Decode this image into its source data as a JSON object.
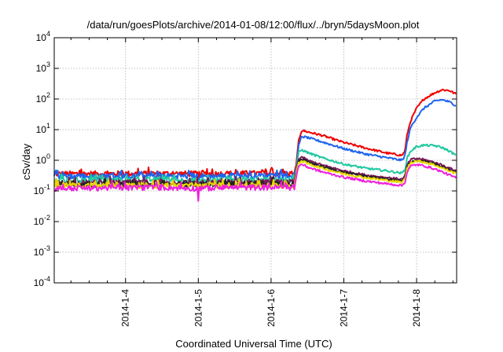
{
  "chart_data": {
    "type": "line",
    "title": "/data/run/goesPlots/archive/2014-01-08/12:00/flux/../bryn/5daysMoon.plot",
    "xlabel": "Coordinated Universal Time (UTC)",
    "ylabel": "cSv/day",
    "y_scale": "log",
    "ylim": [
      0.0001,
      10000
    ],
    "xlim": [
      -0.98,
      4.55
    ],
    "x_unit": "days from 2014-01-04 00:00 UTC",
    "x_ticks": [
      {
        "x": 0,
        "label": "2014-1-4"
      },
      {
        "x": 1,
        "label": "2014-1-5"
      },
      {
        "x": 2,
        "label": "2014-1-6"
      },
      {
        "x": 3,
        "label": "2014-1-7"
      },
      {
        "x": 4,
        "label": "2014-1-8"
      }
    ],
    "y_ticks": [
      {
        "value": 0.0001,
        "base": "10",
        "exp": "-4"
      },
      {
        "value": 0.001,
        "base": "10",
        "exp": "-3"
      },
      {
        "value": 0.01,
        "base": "10",
        "exp": "-2"
      },
      {
        "value": 0.1,
        "base": "10",
        "exp": "-1"
      },
      {
        "value": 1,
        "base": "10",
        "exp": "0"
      },
      {
        "value": 10,
        "base": "10",
        "exp": "1"
      },
      {
        "value": 100,
        "base": "10",
        "exp": "2"
      },
      {
        "value": 1000,
        "base": "10",
        "exp": "3"
      },
      {
        "value": 10000,
        "base": "10",
        "exp": "4"
      }
    ],
    "grid": true,
    "legend": "none",
    "series": [
      {
        "color": "#ee0000",
        "points": [
          [
            -0.98,
            0.36
          ],
          [
            0.5,
            0.37
          ],
          [
            1.0,
            0.36
          ],
          [
            1.5,
            0.37
          ],
          [
            2.0,
            0.38
          ],
          [
            2.32,
            0.37
          ],
          [
            2.35,
            0.9
          ],
          [
            2.38,
            4.5
          ],
          [
            2.42,
            9.5
          ],
          [
            2.5,
            8.5
          ],
          [
            2.7,
            6.5
          ],
          [
            3.0,
            3.8
          ],
          [
            3.3,
            2.5
          ],
          [
            3.6,
            1.7
          ],
          [
            3.8,
            1.45
          ],
          [
            3.84,
            2.0
          ],
          [
            3.87,
            7
          ],
          [
            3.92,
            20
          ],
          [
            4.0,
            50
          ],
          [
            4.1,
            100
          ],
          [
            4.25,
            160
          ],
          [
            4.35,
            200
          ],
          [
            4.45,
            190
          ],
          [
            4.55,
            140
          ]
        ]
      },
      {
        "color": "#1e64ee",
        "points": [
          [
            -0.98,
            0.3
          ],
          [
            0.5,
            0.31
          ],
          [
            1.0,
            0.3
          ],
          [
            1.5,
            0.31
          ],
          [
            2.0,
            0.32
          ],
          [
            2.32,
            0.31
          ],
          [
            2.35,
            0.7
          ],
          [
            2.38,
            3.0
          ],
          [
            2.42,
            6.0
          ],
          [
            2.5,
            5.5
          ],
          [
            2.7,
            4.0
          ],
          [
            3.0,
            2.4
          ],
          [
            3.3,
            1.6
          ],
          [
            3.6,
            1.2
          ],
          [
            3.8,
            1.0
          ],
          [
            3.84,
            1.4
          ],
          [
            3.87,
            4
          ],
          [
            3.92,
            12
          ],
          [
            4.0,
            25
          ],
          [
            4.1,
            50
          ],
          [
            4.25,
            85
          ],
          [
            4.35,
            95
          ],
          [
            4.45,
            80
          ],
          [
            4.55,
            60
          ]
        ]
      },
      {
        "color": "#20c8a0",
        "points": [
          [
            -0.98,
            0.22
          ],
          [
            0.5,
            0.23
          ],
          [
            1.0,
            0.22
          ],
          [
            1.5,
            0.23
          ],
          [
            2.0,
            0.24
          ],
          [
            2.32,
            0.23
          ],
          [
            2.35,
            0.6
          ],
          [
            2.38,
            1.8
          ],
          [
            2.42,
            2.2
          ],
          [
            2.5,
            1.8
          ],
          [
            2.7,
            1.2
          ],
          [
            3.0,
            0.75
          ],
          [
            3.3,
            0.55
          ],
          [
            3.6,
            0.45
          ],
          [
            3.8,
            0.38
          ],
          [
            3.84,
            0.5
          ],
          [
            3.87,
            1.2
          ],
          [
            3.92,
            2.0
          ],
          [
            4.0,
            2.8
          ],
          [
            4.1,
            3.1
          ],
          [
            4.25,
            3.0
          ],
          [
            4.35,
            2.6
          ],
          [
            4.45,
            2.0
          ],
          [
            4.55,
            1.4
          ]
        ]
      },
      {
        "color": "#7a1a5a",
        "points": [
          [
            -0.98,
            0.18
          ],
          [
            0.5,
            0.19
          ],
          [
            1.0,
            0.18
          ],
          [
            1.5,
            0.19
          ],
          [
            2.0,
            0.19
          ],
          [
            2.32,
            0.19
          ],
          [
            2.35,
            0.5
          ],
          [
            2.38,
            1.1
          ],
          [
            2.42,
            1.3
          ],
          [
            2.5,
            1.0
          ],
          [
            2.7,
            0.7
          ],
          [
            3.0,
            0.45
          ],
          [
            3.3,
            0.33
          ],
          [
            3.6,
            0.27
          ],
          [
            3.8,
            0.24
          ],
          [
            3.84,
            0.3
          ],
          [
            3.87,
            0.7
          ],
          [
            3.92,
            1.05
          ],
          [
            4.0,
            1.15
          ],
          [
            4.1,
            1.05
          ],
          [
            4.25,
            0.85
          ],
          [
            4.35,
            0.7
          ],
          [
            4.45,
            0.55
          ],
          [
            4.55,
            0.45
          ]
        ]
      },
      {
        "color": "#222222",
        "points": [
          [
            -0.98,
            0.16
          ],
          [
            0.5,
            0.17
          ],
          [
            1.0,
            0.16
          ],
          [
            1.5,
            0.17
          ],
          [
            2.0,
            0.17
          ],
          [
            2.32,
            0.17
          ],
          [
            2.35,
            0.45
          ],
          [
            2.38,
            0.95
          ],
          [
            2.42,
            1.1
          ],
          [
            2.5,
            0.9
          ],
          [
            2.7,
            0.62
          ],
          [
            3.0,
            0.4
          ],
          [
            3.3,
            0.3
          ],
          [
            3.6,
            0.24
          ],
          [
            3.8,
            0.21
          ],
          [
            3.84,
            0.27
          ],
          [
            3.87,
            0.6
          ],
          [
            3.92,
            0.9
          ],
          [
            4.0,
            1.0
          ],
          [
            4.1,
            0.92
          ],
          [
            4.25,
            0.75
          ],
          [
            4.35,
            0.6
          ],
          [
            4.45,
            0.48
          ],
          [
            4.55,
            0.4
          ]
        ]
      },
      {
        "color": "#e8d800",
        "points": [
          [
            -0.98,
            0.15
          ],
          [
            0.5,
            0.15
          ],
          [
            1.0,
            0.15
          ],
          [
            1.5,
            0.15
          ],
          [
            2.0,
            0.15
          ],
          [
            2.32,
            0.15
          ],
          [
            2.35,
            0.4
          ],
          [
            2.38,
            0.85
          ],
          [
            2.42,
            0.95
          ],
          [
            2.5,
            0.78
          ],
          [
            2.7,
            0.55
          ],
          [
            3.0,
            0.36
          ],
          [
            3.3,
            0.27
          ],
          [
            3.6,
            0.22
          ],
          [
            3.8,
            0.19
          ],
          [
            3.84,
            0.25
          ],
          [
            3.87,
            0.55
          ],
          [
            3.92,
            0.85
          ],
          [
            4.0,
            0.95
          ],
          [
            4.1,
            0.88
          ],
          [
            4.25,
            0.7
          ],
          [
            4.35,
            0.56
          ],
          [
            4.45,
            0.45
          ],
          [
            4.55,
            0.36
          ]
        ]
      },
      {
        "color": "#ee22dd",
        "points": [
          [
            -0.98,
            0.12
          ],
          [
            0.5,
            0.13
          ],
          [
            1.0,
            0.12
          ],
          [
            1.5,
            0.13
          ],
          [
            2.0,
            0.13
          ],
          [
            2.32,
            0.13
          ],
          [
            2.35,
            0.33
          ],
          [
            2.38,
            0.65
          ],
          [
            2.42,
            0.75
          ],
          [
            2.5,
            0.6
          ],
          [
            2.7,
            0.42
          ],
          [
            3.0,
            0.28
          ],
          [
            3.3,
            0.21
          ],
          [
            3.6,
            0.17
          ],
          [
            3.8,
            0.15
          ],
          [
            3.84,
            0.19
          ],
          [
            3.87,
            0.42
          ],
          [
            3.92,
            0.65
          ],
          [
            4.0,
            0.72
          ],
          [
            4.1,
            0.66
          ],
          [
            4.25,
            0.52
          ],
          [
            4.35,
            0.42
          ],
          [
            4.45,
            0.33
          ],
          [
            4.55,
            0.26
          ]
        ]
      }
    ],
    "annotations": [
      {
        "x": 1.0,
        "y": 0.05,
        "note": "dip"
      }
    ]
  }
}
